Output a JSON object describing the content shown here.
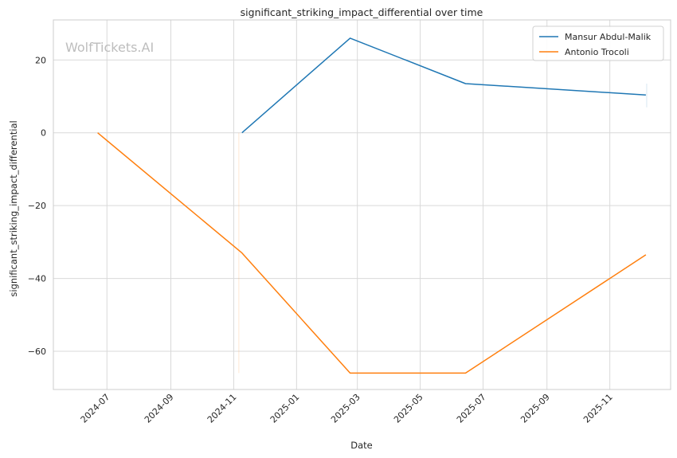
{
  "watermark": "WolfTickets.AI",
  "chart_data": {
    "type": "line",
    "title": "significant_striking_impact_differential over time",
    "xlabel": "Date",
    "ylabel": "significant_striking_impact_differential",
    "x_type": "date",
    "xlim": [
      "2024-05-10",
      "2025-12-30"
    ],
    "ylim": [
      -70.5,
      31
    ],
    "x_ticks": [
      "2024-07",
      "2024-09",
      "2024-11",
      "2025-01",
      "2025-03",
      "2025-05",
      "2025-07",
      "2025-09",
      "2025-11"
    ],
    "y_ticks": [
      20,
      0,
      -20,
      -40,
      -60
    ],
    "y_tick_labels": [
      "20",
      "0",
      "−20",
      "−40",
      "−60"
    ],
    "grid": true,
    "legend": "top-right",
    "series": [
      {
        "name": "Mansur Abdul-Malik",
        "color": "#1f77b4",
        "points": [
          {
            "date": "2024-11-09",
            "value": 0
          },
          {
            "date": "2025-02-22",
            "value": 26
          },
          {
            "date": "2025-06-14",
            "value": 13.5
          },
          {
            "date": "2025-12-06",
            "value": 10.4
          }
        ]
      },
      {
        "name": "Antonio Trocoli",
        "color": "#ff7f0e",
        "points": [
          {
            "date": "2024-06-22",
            "value": 0
          },
          {
            "date": "2024-11-09",
            "value": -33
          },
          {
            "date": "2025-02-22",
            "value": -66
          },
          {
            "date": "2025-06-14",
            "value": -66
          },
          {
            "date": "2025-12-06",
            "value": -33.5
          }
        ]
      }
    ]
  }
}
